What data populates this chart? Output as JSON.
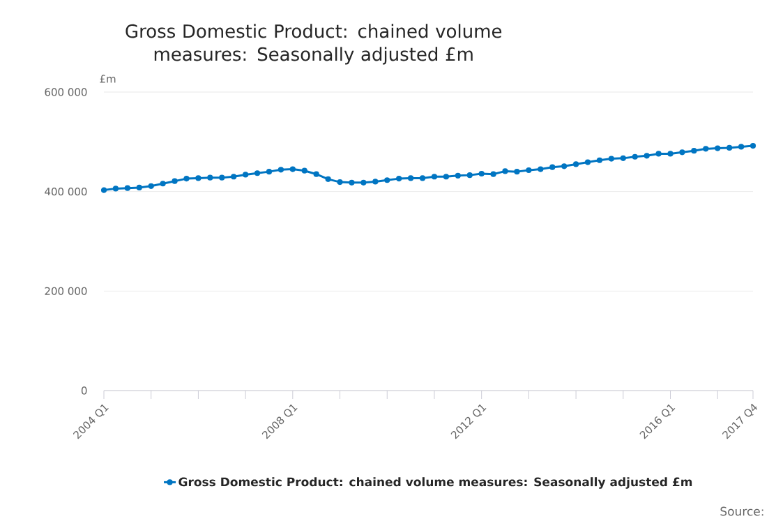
{
  "chart_data": {
    "type": "line",
    "title": "Gross Domestic Product: chained volume measures: Seasonally adjusted £m",
    "ylabel": "£m",
    "categories": [
      "2004 Q1",
      null,
      null,
      null,
      null,
      null,
      null,
      null,
      null,
      null,
      null,
      null,
      null,
      null,
      null,
      null,
      "2008 Q1",
      null,
      null,
      null,
      null,
      null,
      null,
      null,
      null,
      null,
      null,
      null,
      null,
      null,
      null,
      null,
      "2012 Q1",
      null,
      null,
      null,
      null,
      null,
      null,
      null,
      null,
      null,
      null,
      null,
      null,
      null,
      null,
      null,
      "2016 Q1",
      null,
      null,
      null,
      null,
      null,
      null,
      "2017 Q4"
    ],
    "series": [
      {
        "name": "Gross Domestic Product: chained volume measures: Seasonally adjusted £m",
        "color": "#0075c2",
        "values": [
          403000,
          406000,
          407000,
          408000,
          411000,
          416000,
          421000,
          426000,
          427000,
          428000,
          428000,
          430000,
          434000,
          437000,
          440000,
          444000,
          445000,
          442000,
          435000,
          425000,
          419000,
          418000,
          418000,
          420000,
          423000,
          426000,
          427000,
          427000,
          430000,
          430000,
          432000,
          433000,
          436000,
          435000,
          441000,
          440000,
          443000,
          445000,
          449000,
          451000,
          455000,
          459000,
          463000,
          466000,
          467000,
          470000,
          472000,
          476000,
          476000,
          479000,
          482000,
          486000,
          487000,
          488000,
          490000,
          492000
        ]
      }
    ],
    "ylim": [
      0,
      600000
    ],
    "yticks": [
      0,
      {
        "value": 200000,
        "label": "200 000"
      },
      {
        "value": 400000,
        "label": "400 000"
      },
      {
        "value": 600000,
        "label": "600 000"
      }
    ],
    "grid": "y",
    "legend": "bottom",
    "marker": "circle",
    "line_style": "solid",
    "annotations": [
      "Source:"
    ]
  }
}
